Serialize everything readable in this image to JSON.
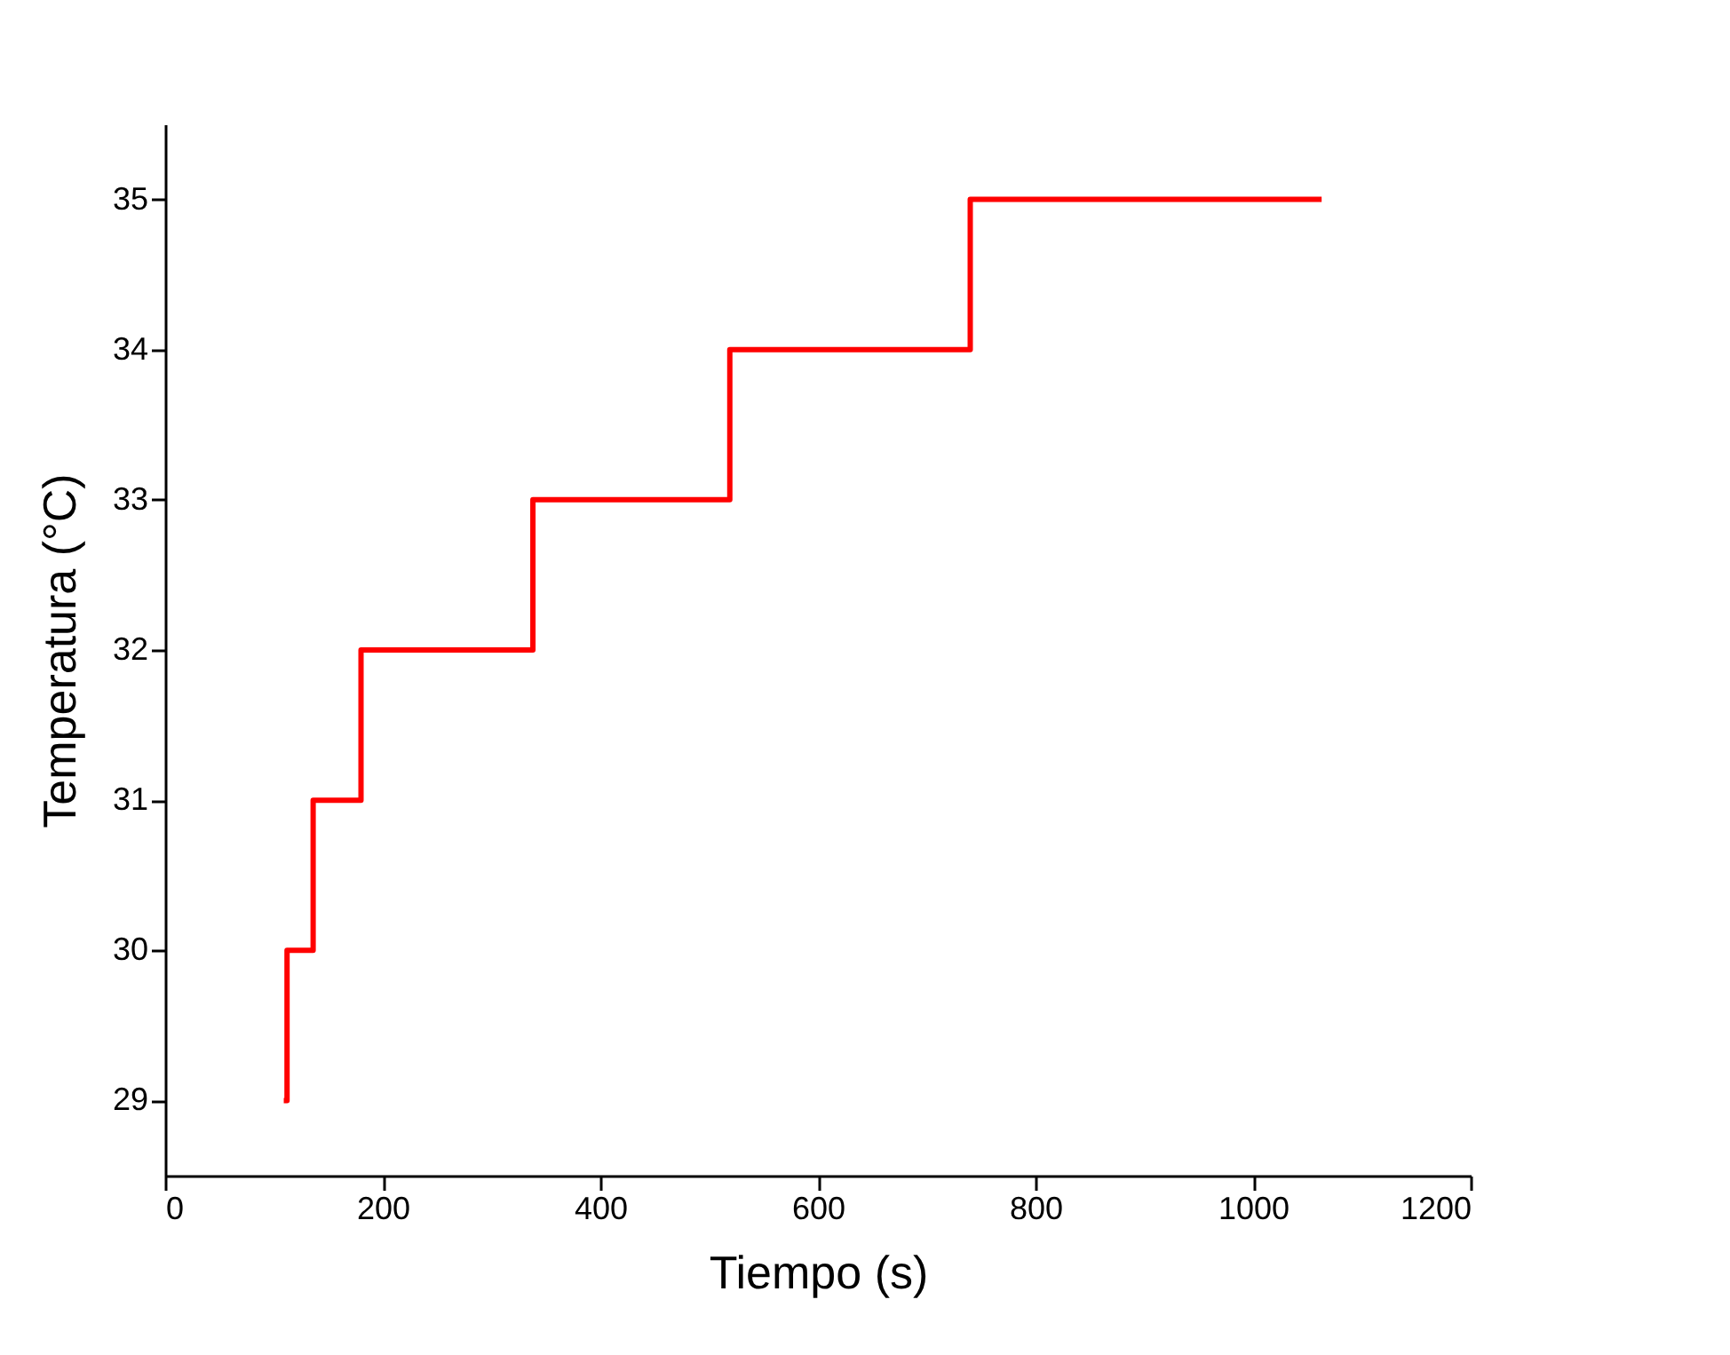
{
  "chart_data": {
    "type": "step",
    "xlabel": "Tiempo (s)",
    "ylabel": "Temperatura (°C)",
    "x": [
      109,
      112,
      136,
      180,
      338,
      519,
      740,
      1063
    ],
    "series": [
      {
        "color": "#ff0000",
        "values": [
          29,
          30,
          31,
          32,
          33,
          34,
          35,
          35
        ]
      }
    ],
    "xlim": [
      0,
      1200
    ],
    "xticks": [
      0,
      200,
      400,
      600,
      800,
      1000,
      1200
    ],
    "ylim": [
      28.5,
      35.5
    ],
    "yticks": [
      29,
      30,
      31,
      32,
      33,
      34,
      35
    ],
    "grid": false,
    "marker": "none",
    "line_style": "solid"
  }
}
